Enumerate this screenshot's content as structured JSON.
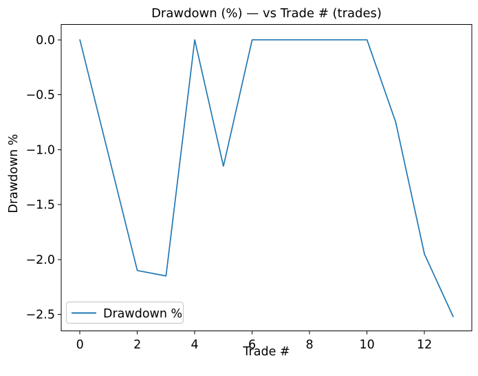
{
  "chart_data": {
    "type": "line",
    "title": "Drawdown (%) — vs Trade # (trades)",
    "xlabel": "Trade #",
    "ylabel": "Drawdown %",
    "x": [
      0,
      1,
      2,
      3,
      4,
      5,
      6,
      7,
      8,
      9,
      10,
      11,
      12,
      13
    ],
    "series": [
      {
        "name": "Drawdown %",
        "color": "#1f77b4",
        "values": [
          0.0,
          -1.05,
          -2.1,
          -2.15,
          0.0,
          -1.15,
          0.0,
          0.0,
          0.0,
          0.0,
          0.0,
          -0.75,
          -1.95,
          -2.52
        ]
      }
    ],
    "xlim": [
      -0.65,
      13.65
    ],
    "ylim": [
      -2.65,
      0.14
    ],
    "xticks": {
      "values": [
        0,
        2,
        4,
        6,
        8,
        10,
        12
      ],
      "labels": [
        "0",
        "2",
        "4",
        "6",
        "8",
        "10",
        "12"
      ]
    },
    "yticks": {
      "values": [
        0,
        -0.5,
        -1,
        -1.5,
        -2,
        -2.5
      ],
      "labels": [
        "0.0",
        "−0.5",
        "−1.0",
        "−1.5",
        "−2.0",
        "−2.5"
      ]
    },
    "grid": false,
    "legend": {
      "position": "lower-left",
      "entries": [
        {
          "label": "Drawdown %",
          "color": "#1f77b4"
        }
      ]
    },
    "colors": {
      "background": "#ffffff",
      "axes": "#000000",
      "text": "#000000",
      "legend_border": "#cccccc"
    }
  }
}
